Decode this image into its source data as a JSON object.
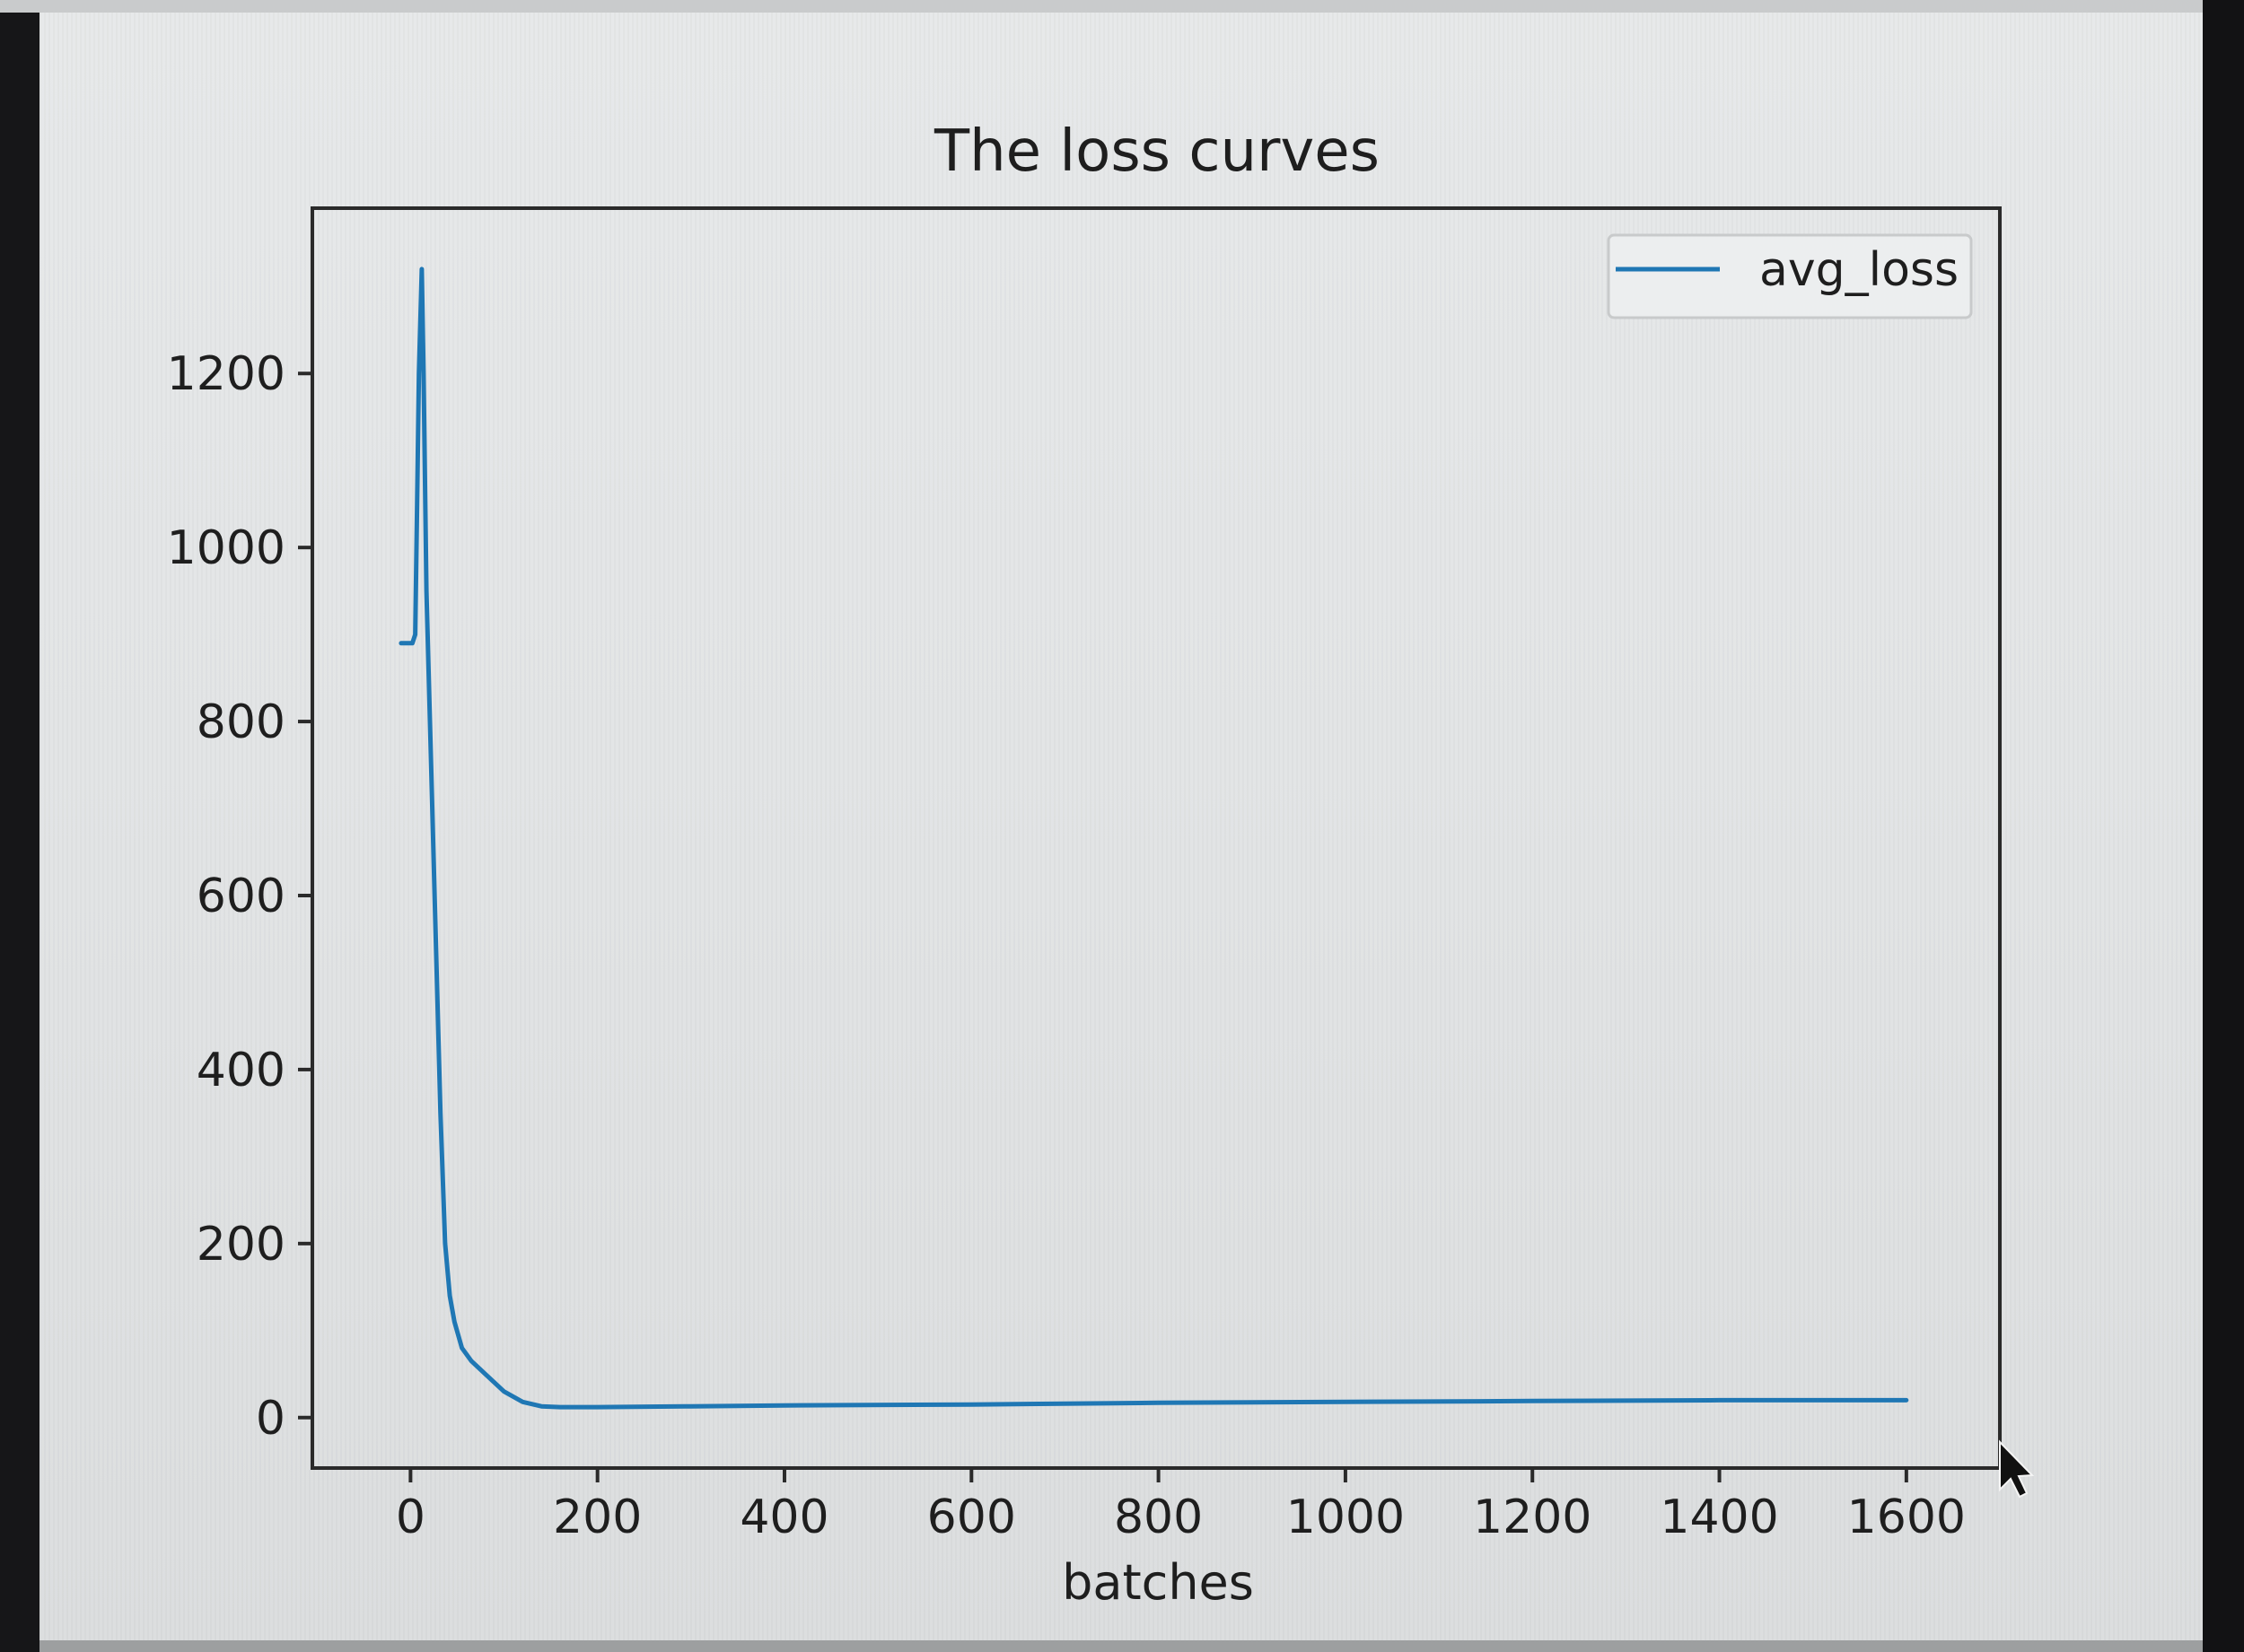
{
  "chart_data": {
    "type": "line",
    "title": "The loss curves",
    "xlabel": "batches",
    "ylabel": "",
    "xlim": [
      -105,
      1700
    ],
    "ylim": [
      -58,
      1390
    ],
    "xticks": [
      0,
      200,
      400,
      600,
      800,
      1000,
      1200,
      1400,
      1600
    ],
    "xtick_labels": [
      "0",
      "200",
      "400",
      "600",
      "800",
      "1000",
      "1200",
      "1400",
      "1600"
    ],
    "yticks": [
      0,
      200,
      400,
      600,
      800,
      1000,
      1200
    ],
    "ytick_labels": [
      "0",
      "200",
      "400",
      "600",
      "800",
      "1000",
      "1200"
    ],
    "grid": false,
    "legend_position": "upper right",
    "series": [
      {
        "name": "avg_loss",
        "color": "#1f77b4",
        "points": [
          [
            -10,
            890
          ],
          [
            2,
            890
          ],
          [
            5,
            900
          ],
          [
            7,
            1050
          ],
          [
            9,
            1200
          ],
          [
            12,
            1320
          ],
          [
            14,
            1200
          ],
          [
            17,
            950
          ],
          [
            22,
            750
          ],
          [
            27,
            550
          ],
          [
            32,
            350
          ],
          [
            37,
            200
          ],
          [
            42,
            140
          ],
          [
            47,
            110
          ],
          [
            55,
            80
          ],
          [
            65,
            65
          ],
          [
            80,
            50
          ],
          [
            100,
            30
          ],
          [
            120,
            18
          ],
          [
            140,
            13
          ],
          [
            160,
            12
          ],
          [
            200,
            12
          ],
          [
            300,
            13
          ],
          [
            400,
            14
          ],
          [
            600,
            15
          ],
          [
            800,
            17
          ],
          [
            1000,
            18
          ],
          [
            1200,
            19
          ],
          [
            1400,
            20
          ],
          [
            1600,
            20
          ]
        ]
      }
    ]
  },
  "screen": {
    "bg_color": "#e5e7e8",
    "axes_color": "#2a2a2a",
    "text_color": "#1e1e1e"
  }
}
